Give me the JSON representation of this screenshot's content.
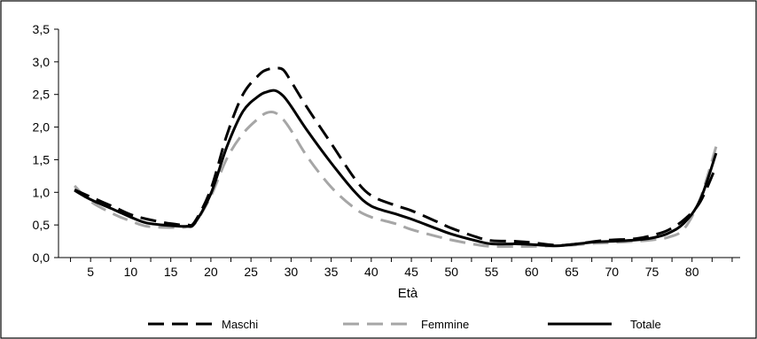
{
  "chart_data": {
    "type": "line",
    "xlabel": "Età",
    "ylabel": "",
    "ylim": [
      0,
      3.5
    ],
    "xlim": [
      1,
      86
    ],
    "xticks": [
      5,
      10,
      15,
      20,
      25,
      30,
      35,
      40,
      45,
      50,
      55,
      60,
      65,
      70,
      75,
      80
    ],
    "yticks": [
      "0,0",
      "0,5",
      "1,0",
      "1,5",
      "2,0",
      "2,5",
      "3,0",
      "3,5"
    ],
    "ytick_values": [
      0,
      0.5,
      1.0,
      1.5,
      2.0,
      2.5,
      3.0,
      3.5
    ],
    "grid": false,
    "legend_position": "bottom",
    "series": [
      {
        "name": "Maschi",
        "color": "#000000",
        "style": "dashed",
        "x": [
          3,
          5,
          8,
          10,
          12,
          15,
          17,
          18,
          20,
          22,
          24,
          26,
          27,
          28,
          29,
          30,
          32,
          35,
          38,
          40,
          43,
          45,
          48,
          50,
          53,
          55,
          58,
          60,
          63,
          65,
          68,
          70,
          73,
          75,
          77,
          79,
          81,
          83
        ],
        "y": [
          1.04,
          0.93,
          0.77,
          0.66,
          0.59,
          0.52,
          0.5,
          0.55,
          1.05,
          1.88,
          2.5,
          2.8,
          2.88,
          2.9,
          2.88,
          2.7,
          2.3,
          1.75,
          1.2,
          0.95,
          0.8,
          0.72,
          0.56,
          0.45,
          0.32,
          0.26,
          0.25,
          0.23,
          0.19,
          0.2,
          0.25,
          0.27,
          0.29,
          0.34,
          0.42,
          0.58,
          0.85,
          1.4
        ]
      },
      {
        "name": "Femmine",
        "color": "#a6a6a6",
        "style": "dashed",
        "x": [
          3,
          5,
          8,
          10,
          12,
          15,
          17,
          18,
          20,
          22,
          24,
          26,
          27,
          28,
          29,
          30,
          32,
          35,
          38,
          40,
          43,
          45,
          48,
          50,
          53,
          55,
          58,
          60,
          63,
          65,
          68,
          70,
          73,
          75,
          77,
          79,
          81,
          83
        ],
        "y": [
          1.1,
          0.86,
          0.66,
          0.56,
          0.48,
          0.46,
          0.47,
          0.52,
          0.94,
          1.52,
          1.9,
          2.14,
          2.22,
          2.22,
          2.12,
          1.95,
          1.55,
          1.08,
          0.75,
          0.62,
          0.52,
          0.43,
          0.33,
          0.27,
          0.2,
          0.17,
          0.17,
          0.17,
          0.18,
          0.19,
          0.22,
          0.23,
          0.25,
          0.27,
          0.31,
          0.44,
          0.9,
          1.7
        ]
      },
      {
        "name": "Totale",
        "color": "#000000",
        "style": "solid",
        "x": [
          3,
          5,
          8,
          10,
          12,
          15,
          17,
          18,
          20,
          22,
          24,
          26,
          27,
          28,
          29,
          30,
          32,
          35,
          38,
          40,
          43,
          45,
          48,
          50,
          53,
          55,
          58,
          60,
          63,
          65,
          68,
          70,
          73,
          75,
          77,
          79,
          81,
          83
        ],
        "y": [
          1.03,
          0.89,
          0.73,
          0.62,
          0.53,
          0.49,
          0.48,
          0.53,
          0.98,
          1.7,
          2.24,
          2.48,
          2.54,
          2.56,
          2.48,
          2.32,
          1.95,
          1.45,
          1.0,
          0.79,
          0.67,
          0.59,
          0.45,
          0.36,
          0.26,
          0.21,
          0.21,
          0.2,
          0.18,
          0.2,
          0.24,
          0.25,
          0.27,
          0.3,
          0.37,
          0.53,
          0.88,
          1.6
        ]
      }
    ]
  }
}
